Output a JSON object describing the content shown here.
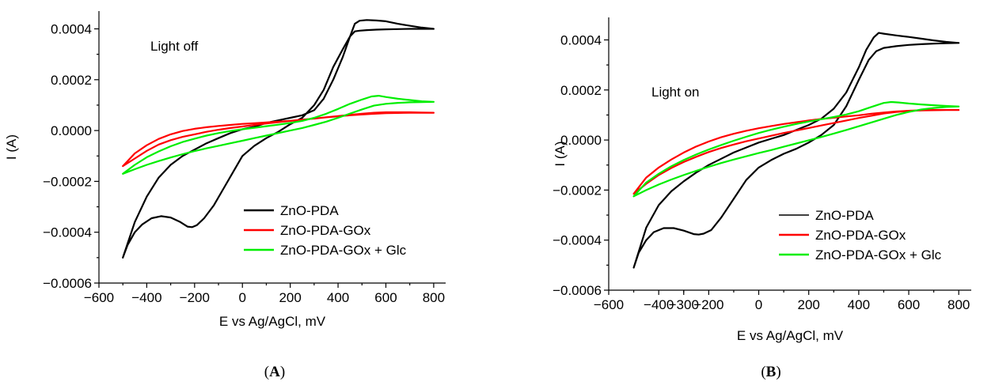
{
  "chart_data": [
    {
      "type": "line",
      "panel_label": "A",
      "annotation": "Light off",
      "xlabel": "E vs Ag/AgCl, mV",
      "ylabel": "I (A)",
      "xlim": [
        -600,
        850
      ],
      "ylim": [
        -0.0006,
        0.00047
      ],
      "xticks": [
        -600,
        -400,
        -200,
        0,
        200,
        400,
        600,
        800
      ],
      "xtick_labels": [
        "−600",
        "−400",
        "−200",
        "0",
        "200",
        "400",
        "600",
        "800"
      ],
      "yticks": [
        -0.0006,
        -0.0004,
        -0.0002,
        0,
        0.0002,
        0.0004
      ],
      "ytick_labels": [
        "−0.0006",
        "−0.0004",
        "−0.0002",
        "0.0000",
        "0.0002",
        "0.0004"
      ],
      "grid": false,
      "legend_position": "bottom-right",
      "series": [
        {
          "name": "ZnO-PDA",
          "color": "#000000",
          "x": [
            -500,
            -480,
            -450,
            -420,
            -380,
            -340,
            -300,
            -260,
            -230,
            -210,
            -190,
            -160,
            -120,
            -80,
            -40,
            0,
            50,
            100,
            150,
            200,
            250,
            300,
            340,
            380,
            420,
            450,
            470,
            490,
            520,
            560,
            600,
            650,
            700,
            750,
            800,
            750,
            700,
            650,
            600,
            560,
            520,
            490,
            470,
            450,
            420,
            380,
            340,
            300,
            250,
            200,
            150,
            100,
            50,
            0,
            -50,
            -100,
            -150,
            -200,
            -250,
            -300,
            -350,
            -400,
            -450,
            -500
          ],
          "y": [
            -0.0005,
            -0.00045,
            -0.0004,
            -0.00037,
            -0.000345,
            -0.000337,
            -0.000342,
            -0.00036,
            -0.000378,
            -0.00038,
            -0.000372,
            -0.000345,
            -0.000295,
            -0.00023,
            -0.000165,
            -0.0001,
            -6e-05,
            -3e-05,
            -5e-06,
            2.5e-05,
            5e-05,
            0.0001,
            0.00016,
            0.00025,
            0.00032,
            0.00037,
            0.00039,
            0.000393,
            0.000395,
            0.000397,
            0.000398,
            0.000399,
            0.0004,
            0.0004,
            0.0004,
            0.000405,
            0.000412,
            0.00042,
            0.00043,
            0.000433,
            0.000435,
            0.000432,
            0.00042,
            0.00037,
            0.00029,
            0.0002,
            0.000125,
            8e-05,
            6e-05,
            5e-05,
            4e-05,
            3e-05,
            1.5e-05,
            5e-06,
            -1e-05,
            -3e-05,
            -5e-05,
            -7.5e-05,
            -0.0001,
            -0.000135,
            -0.000185,
            -0.00026,
            -0.00036,
            -0.0005
          ]
        },
        {
          "name": "ZnO-PDA-GOx",
          "color": "#ff0000",
          "x": [
            -500,
            -450,
            -400,
            -350,
            -300,
            -250,
            -200,
            -150,
            -100,
            -50,
            0,
            50,
            100,
            150,
            200,
            250,
            300,
            350,
            400,
            450,
            500,
            550,
            600,
            650,
            700,
            750,
            800,
            750,
            700,
            650,
            600,
            550,
            500,
            450,
            400,
            350,
            300,
            250,
            200,
            150,
            100,
            50,
            0,
            -50,
            -100,
            -150,
            -200,
            -250,
            -300,
            -350,
            -400,
            -450,
            -500
          ],
          "y": [
            -0.00014,
            -0.00011,
            -8e-05,
            -5.5e-05,
            -3.8e-05,
            -2.5e-05,
            -1.5e-05,
            -5e-06,
            3e-06,
            1e-05,
            1.6e-05,
            2.2e-05,
            2.8e-05,
            3.3e-05,
            3.8e-05,
            4.3e-05,
            4.7e-05,
            5.2e-05,
            5.6e-05,
            6e-05,
            6.3e-05,
            6.6e-05,
            6.8e-05,
            6.9e-05,
            7e-05,
            7e-05,
            7e-05,
            7.1e-05,
            7.2e-05,
            7.2e-05,
            7.2e-05,
            7e-05,
            6.6e-05,
            6.2e-05,
            5.7e-05,
            5.2e-05,
            4.7e-05,
            4.3e-05,
            3.8e-05,
            3.5e-05,
            3.2e-05,
            2.9e-05,
            2.6e-05,
            2.2e-05,
            1.8e-05,
            1.3e-05,
            7e-06,
            -2e-06,
            -1.5e-05,
            -3.3e-05,
            -5.8e-05,
            -9e-05,
            -0.00014
          ]
        },
        {
          "name": "ZnO-PDA-GOx + Glc",
          "color": "#00ee00",
          "x": [
            -500,
            -450,
            -400,
            -350,
            -300,
            -250,
            -200,
            -150,
            -100,
            -50,
            0,
            50,
            100,
            150,
            200,
            250,
            300,
            350,
            400,
            450,
            500,
            550,
            600,
            650,
            700,
            750,
            800,
            750,
            700,
            650,
            600,
            570,
            540,
            500,
            450,
            400,
            350,
            300,
            250,
            200,
            150,
            100,
            50,
            0,
            -50,
            -100,
            -150,
            -200,
            -250,
            -300,
            -350,
            -400,
            -450,
            -500
          ],
          "y": [
            -0.00017,
            -0.000152,
            -0.000135,
            -0.00012,
            -0.000106,
            -9.3e-05,
            -8.1e-05,
            -7e-05,
            -6e-05,
            -5e-05,
            -4e-05,
            -3e-05,
            -2e-05,
            -1e-05,
            0.0,
            1e-05,
            2.2e-05,
            3.5e-05,
            5e-05,
            6.7e-05,
            8.3e-05,
            9.8e-05,
            0.000105,
            0.000109,
            0.000111,
            0.000112,
            0.000113,
            0.000115,
            0.00012,
            0.000125,
            0.000132,
            0.000137,
            0.000134,
            0.000122,
            0.000105,
            8.5e-05,
            6.6e-05,
            5e-05,
            3.8e-05,
            3e-05,
            2.3e-05,
            1.7e-05,
            1.1e-05,
            5e-06,
            -2e-06,
            -1e-05,
            -2e-05,
            -3.2e-05,
            -4.5e-05,
            -6.2e-05,
            -8.2e-05,
            -0.000105,
            -0.000135,
            -0.00017
          ]
        }
      ]
    },
    {
      "type": "line",
      "panel_label": "B",
      "annotation": "Light on",
      "xlabel": "E vs Ag/AgCl, mV",
      "ylabel": "I (A)",
      "xlim": [
        -600,
        850
      ],
      "ylim": [
        -0.0006,
        0.00049
      ],
      "xticks": [
        -600,
        -400,
        -300,
        -200,
        0,
        200,
        400,
        600,
        800
      ],
      "xtick_labels": [
        "−600",
        "−400",
        "−300",
        "−200",
        "0",
        "200",
        "400",
        "600",
        "800"
      ],
      "yticks": [
        -0.0006,
        -0.0004,
        -0.0002,
        0,
        0.0002,
        0.0004
      ],
      "ytick_labels": [
        "−0.0006",
        "−0.0004",
        "−0.0002",
        "0.0000",
        "0.0002",
        "0.0004"
      ],
      "grid": false,
      "legend_position": "bottom-right",
      "series": [
        {
          "name": "ZnO-PDA",
          "color": "#000000",
          "x": [
            -500,
            -480,
            -450,
            -420,
            -380,
            -340,
            -300,
            -260,
            -240,
            -220,
            -190,
            -150,
            -100,
            -50,
            0,
            50,
            100,
            150,
            200,
            250,
            300,
            350,
            400,
            440,
            470,
            500,
            550,
            600,
            650,
            700,
            750,
            800,
            750,
            700,
            650,
            600,
            550,
            500,
            480,
            460,
            430,
            400,
            350,
            300,
            250,
            200,
            150,
            100,
            50,
            0,
            -50,
            -100,
            -150,
            -200,
            -250,
            -300,
            -350,
            -400,
            -450,
            -500
          ],
          "y": [
            -0.00051,
            -0.00045,
            -0.0004,
            -0.000368,
            -0.000352,
            -0.000352,
            -0.000362,
            -0.000376,
            -0.000378,
            -0.000374,
            -0.00036,
            -0.00031,
            -0.000235,
            -0.00016,
            -0.00011,
            -8e-05,
            -5.5e-05,
            -3.5e-05,
            -1e-05,
            2e-05,
            6e-05,
            0.000135,
            0.00024,
            0.00032,
            0.000355,
            0.000368,
            0.000375,
            0.00038,
            0.000383,
            0.000385,
            0.000387,
            0.000388,
            0.000392,
            0.000398,
            0.000405,
            0.000412,
            0.000418,
            0.000425,
            0.000428,
            0.00041,
            0.00036,
            0.00029,
            0.00019,
            0.000125,
            8.5e-05,
            6e-05,
            4e-05,
            2e-05,
            5e-06,
            -1e-05,
            -3e-05,
            -5e-05,
            -7.5e-05,
            -0.0001,
            -0.00013,
            -0.000165,
            -0.000205,
            -0.00026,
            -0.00035,
            -0.00051
          ]
        },
        {
          "name": "ZnO-PDA-GOx",
          "color": "#ff0000",
          "x": [
            -500,
            -450,
            -400,
            -350,
            -300,
            -250,
            -200,
            -150,
            -100,
            -50,
            0,
            50,
            100,
            150,
            200,
            250,
            300,
            350,
            400,
            450,
            500,
            550,
            600,
            650,
            700,
            750,
            800,
            750,
            700,
            650,
            600,
            550,
            500,
            450,
            400,
            350,
            300,
            250,
            200,
            150,
            100,
            50,
            0,
            -50,
            -100,
            -150,
            -200,
            -250,
            -300,
            -350,
            -400,
            -450,
            -500
          ],
          "y": [
            -0.000215,
            -0.000175,
            -0.00014,
            -0.000112,
            -8.8e-05,
            -6.7e-05,
            -4.8e-05,
            -3.2e-05,
            -1.8e-05,
            -5e-06,
            6e-06,
            1.7e-05,
            2.8e-05,
            3.8e-05,
            4.8e-05,
            5.8e-05,
            6.8e-05,
            7.8e-05,
            8.8e-05,
            9.7e-05,
            0.000106,
            0.000112,
            0.000116,
            0.000118,
            0.000119,
            0.00012,
            0.00012,
            0.00012,
            0.00012,
            0.000119,
            0.000117,
            0.000114,
            0.00011,
            0.000105,
            9.9e-05,
            9.4e-05,
            8.9e-05,
            8.4e-05,
            7.8e-05,
            7.1e-05,
            6.4e-05,
            5.6e-05,
            4.7e-05,
            3.7e-05,
            2.5e-05,
            1.1e-05,
            -6e-06,
            -2.6e-05,
            -5e-05,
            -7.8e-05,
            -0.00011,
            -0.00015,
            -0.000215
          ]
        },
        {
          "name": "ZnO-PDA-GOx + Glc",
          "color": "#00ee00",
          "x": [
            -500,
            -450,
            -400,
            -350,
            -300,
            -250,
            -200,
            -150,
            -100,
            -50,
            0,
            50,
            100,
            150,
            200,
            250,
            300,
            350,
            400,
            450,
            500,
            550,
            600,
            650,
            700,
            750,
            800,
            750,
            700,
            650,
            600,
            560,
            530,
            500,
            450,
            400,
            350,
            300,
            250,
            200,
            150,
            100,
            50,
            0,
            -50,
            -100,
            -150,
            -200,
            -250,
            -300,
            -350,
            -400,
            -450,
            -500
          ],
          "y": [
            -0.000225,
            -0.0002,
            -0.000178,
            -0.000158,
            -0.00014,
            -0.000123,
            -0.000107,
            -9.2e-05,
            -7.8e-05,
            -6.5e-05,
            -5.2e-05,
            -4e-05,
            -2.7e-05,
            -1.4e-05,
            -1e-06,
            1.2e-05,
            2.6e-05,
            4e-05,
            5.5e-05,
            7e-05,
            8.5e-05,
            0.0001,
            0.000112,
            0.000122,
            0.000128,
            0.000132,
            0.000134,
            0.000136,
            0.000139,
            0.000142,
            0.000146,
            0.00015,
            0.000152,
            0.000148,
            0.000132,
            0.000115,
            0.000102,
            9.2e-05,
            8.3e-05,
            7.4e-05,
            6.4e-05,
            5.3e-05,
            4.1e-05,
            2.8e-05,
            1.3e-05,
            -3e-06,
            -2e-05,
            -3.8e-05,
            -5.8e-05,
            -8e-05,
            -0.000105,
            -0.000135,
            -0.00017,
            -0.000225
          ]
        }
      ]
    }
  ]
}
